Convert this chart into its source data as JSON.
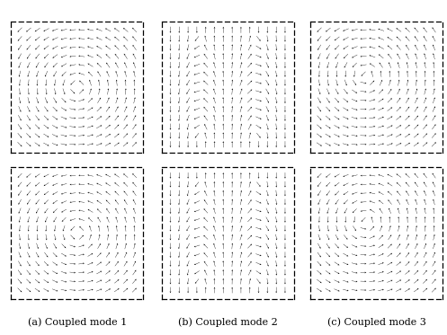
{
  "title_labels": [
    "(a) Coupled mode 1",
    "(b) Coupled mode 2",
    "(c) Coupled mode 3"
  ],
  "n_cols": 3,
  "n_rows": 2,
  "grid_n": 14,
  "arrow_color": "#000000",
  "figsize": [
    4.97,
    3.73
  ],
  "dpi": 100
}
